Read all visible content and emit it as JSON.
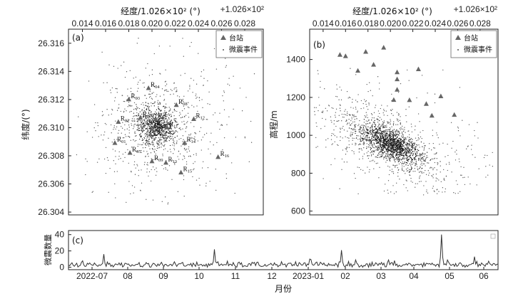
{
  "chart_data": [
    {
      "panel": "(a)",
      "type": "scatter",
      "top_axis_label": "经度/1.026×10² (°)",
      "top_axis_offset": "+1.026×10²",
      "x_ticks": [
        "0.014",
        "0.016",
        "0.018",
        "0.020",
        "0.022",
        "0.024",
        "0.026",
        "0.028"
      ],
      "xlim": [
        0.0128,
        0.0296
      ],
      "ylabel": "纬度/(°)",
      "y_ticks": [
        "26.316",
        "26.314",
        "26.312",
        "26.310",
        "26.308",
        "26.306",
        "26.304"
      ],
      "ylim": [
        26.3038,
        26.317
      ],
      "legend": {
        "station": "台站",
        "event": "微震事件",
        "position": "top-right"
      },
      "stations": [
        {
          "name": "R",
          "sub": "01",
          "x": 0.0168,
          "y": 26.3089
        },
        {
          "name": "R",
          "sub": "02",
          "x": 0.0171,
          "y": 26.3104
        },
        {
          "name": "R",
          "sub": "03",
          "x": 0.018,
          "y": 26.312
        },
        {
          "name": "R",
          "sub": "04",
          "x": 0.0197,
          "y": 26.3128
        },
        {
          "name": "R",
          "sub": "05",
          "x": 0.0181,
          "y": 26.3082
        },
        {
          "name": "R",
          "sub": "06",
          "x": 0.019,
          "y": 26.3107
        },
        {
          "name": "R",
          "sub": "07",
          "x": 0.0203,
          "y": 26.3106
        },
        {
          "name": "R",
          "sub": "08",
          "x": 0.0221,
          "y": 26.3116
        },
        {
          "name": "R",
          "sub": "09",
          "x": 0.02,
          "y": 26.3076
        },
        {
          "name": "R",
          "sub": "10",
          "x": 0.02,
          "y": 26.3099
        },
        {
          "name": "R",
          "sub": "11",
          "x": 0.0213,
          "y": 26.31
        },
        {
          "name": "R",
          "sub": "12",
          "x": 0.0236,
          "y": 26.3106
        },
        {
          "name": "R",
          "sub": "13",
          "x": 0.0212,
          "y": 26.3075
        },
        {
          "name": "R",
          "sub": "14",
          "x": 0.0228,
          "y": 26.3089
        },
        {
          "name": "R",
          "sub": "15",
          "x": 0.0225,
          "y": 26.3068
        },
        {
          "name": "R",
          "sub": "16",
          "x": 0.0257,
          "y": 26.3079
        }
      ],
      "events": {
        "center": [
          0.0204,
          26.3101
        ],
        "count": 1500
      }
    },
    {
      "panel": "(b)",
      "type": "scatter",
      "top_axis_label": "经度/1.026×10² (°)",
      "top_axis_offset": "+1.026×10²",
      "x_ticks": [
        "0.014",
        "0.016",
        "0.018",
        "0.020",
        "0.022",
        "0.024",
        "0.026",
        "0.028"
      ],
      "xlim": [
        0.0128,
        0.0296
      ],
      "ylabel": "高程/m",
      "y_ticks": [
        "1400",
        "1200",
        "1000",
        "800",
        "600"
      ],
      "ylim": [
        580,
        1560
      ],
      "legend": {
        "station": "台站",
        "event": "微震事件",
        "position": "top-right"
      },
      "stations": [
        {
          "x": 0.0155,
          "y": 1424
        },
        {
          "x": 0.016,
          "y": 1417
        },
        {
          "x": 0.0178,
          "y": 1440
        },
        {
          "x": 0.0194,
          "y": 1462
        },
        {
          "x": 0.0171,
          "y": 1340
        },
        {
          "x": 0.0185,
          "y": 1372
        },
        {
          "x": 0.0206,
          "y": 1332
        },
        {
          "x": 0.0206,
          "y": 1295
        },
        {
          "x": 0.0206,
          "y": 1240
        },
        {
          "x": 0.0203,
          "y": 1186
        },
        {
          "x": 0.0225,
          "y": 1348
        },
        {
          "x": 0.0232,
          "y": 1165
        },
        {
          "x": 0.0217,
          "y": 1185
        },
        {
          "x": 0.0245,
          "y": 1205
        },
        {
          "x": 0.0237,
          "y": 1103
        },
        {
          "x": 0.0257,
          "y": 1107
        }
      ],
      "events": {
        "center": [
          0.02,
          955
        ],
        "count": 2200
      }
    },
    {
      "panel": "(c)",
      "type": "line",
      "xlabel": "月份",
      "ylabel": "微震数量",
      "x_ticks": [
        "2022-07",
        "08",
        "09",
        "10",
        "11",
        "12",
        "2023-01",
        "02",
        "03",
        "04",
        "05",
        "06"
      ],
      "y_ticks": [
        "40",
        "20",
        "0"
      ],
      "ylim": [
        -3,
        45
      ],
      "x_range_days": [
        0,
        365
      ],
      "series_baseline": 3,
      "spikes": [
        {
          "day": 30,
          "value": 16
        },
        {
          "day": 124,
          "value": 22
        },
        {
          "day": 205,
          "value": 10
        },
        {
          "day": 232,
          "value": 21
        },
        {
          "day": 244,
          "value": 9
        },
        {
          "day": 272,
          "value": 9
        },
        {
          "day": 317,
          "value": 40
        },
        {
          "day": 322,
          "value": 9
        },
        {
          "day": 345,
          "value": 13
        }
      ]
    }
  ]
}
